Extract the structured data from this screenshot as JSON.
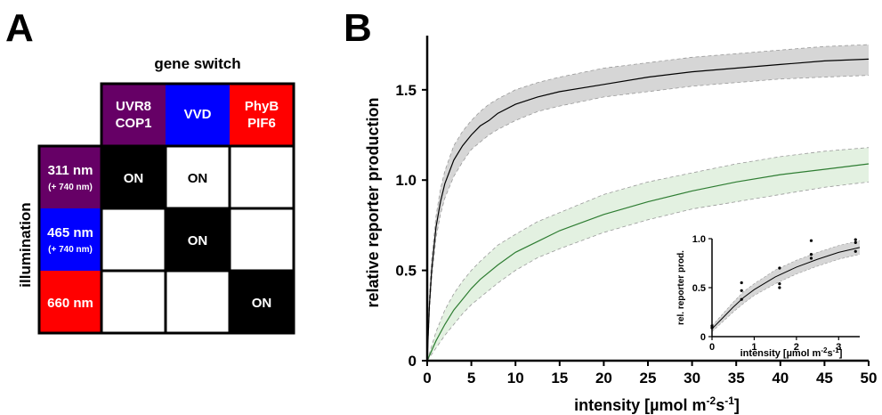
{
  "panel_a": {
    "letter": "A",
    "column_header": "gene switch",
    "row_header": "illumination",
    "switches": [
      {
        "line1": "UVR8",
        "line2": "COP1",
        "color": "#660066"
      },
      {
        "line1": "VVD",
        "line2": "",
        "color": "#0000ff"
      },
      {
        "line1": "PhyB",
        "line2": "PIF6",
        "color": "#ff0000"
      }
    ],
    "illuminations": [
      {
        "line1": "311 nm",
        "line2": "(+ 740 nm)",
        "color": "#660066"
      },
      {
        "line1": "465 nm",
        "line2": "(+ 740 nm)",
        "color": "#0000ff"
      },
      {
        "line1": "660 nm",
        "line2": "",
        "color": "#ff0000"
      }
    ],
    "matrix": [
      [
        "ON",
        "ON",
        ""
      ],
      [
        "",
        "ON",
        ""
      ],
      [
        "",
        "",
        "ON"
      ]
    ],
    "matrix_fill": [
      [
        "black",
        "white",
        "white"
      ],
      [
        "white",
        "black",
        "white"
      ],
      [
        "white",
        "white",
        "black"
      ]
    ]
  },
  "chart_data": [
    {
      "panel": "B",
      "type": "line",
      "title": "",
      "xlabel": "intensity [µmol m⁻² s⁻¹]",
      "ylabel": "relative reporter production",
      "xlim": [
        0,
        50
      ],
      "ylim": [
        0,
        1.8
      ],
      "xticks": [
        0,
        5,
        10,
        15,
        20,
        25,
        30,
        35,
        40,
        45,
        50
      ],
      "yticks": [
        0,
        0.5,
        1.0,
        1.5
      ],
      "ytick_labels": [
        "0",
        "0.5",
        "1.0",
        "1.5"
      ],
      "grid": false,
      "series": [
        {
          "color": "#000000",
          "band_color": "#d6d6d6",
          "x": [
            0,
            0.25,
            0.5,
            1,
            1.5,
            2,
            3,
            4,
            5,
            6,
            7,
            8,
            10,
            12.5,
            15,
            20,
            25,
            30,
            35,
            40,
            45,
            50
          ],
          "y": [
            0,
            0.31,
            0.5,
            0.74,
            0.88,
            0.98,
            1.11,
            1.19,
            1.25,
            1.3,
            1.33,
            1.37,
            1.42,
            1.46,
            1.49,
            1.53,
            1.57,
            1.6,
            1.62,
            1.64,
            1.66,
            1.67
          ],
          "lower": [
            0,
            0.27,
            0.45,
            0.68,
            0.81,
            0.9,
            1.02,
            1.1,
            1.17,
            1.21,
            1.25,
            1.28,
            1.33,
            1.38,
            1.41,
            1.46,
            1.49,
            1.52,
            1.54,
            1.56,
            1.57,
            1.58
          ],
          "upper": [
            0,
            0.36,
            0.56,
            0.8,
            0.95,
            1.05,
            1.19,
            1.27,
            1.33,
            1.38,
            1.42,
            1.45,
            1.5,
            1.54,
            1.57,
            1.62,
            1.65,
            1.68,
            1.7,
            1.72,
            1.74,
            1.75
          ]
        },
        {
          "color": "#2e7d32",
          "band_color": "#e3f1e1",
          "x": [
            0,
            1,
            2,
            3,
            4,
            5,
            6,
            8,
            10,
            12.5,
            15,
            20,
            25,
            30,
            35,
            40,
            45,
            50
          ],
          "y": [
            0,
            0.11,
            0.2,
            0.28,
            0.34,
            0.4,
            0.45,
            0.53,
            0.6,
            0.66,
            0.72,
            0.81,
            0.88,
            0.94,
            0.99,
            1.03,
            1.06,
            1.09
          ],
          "lower": [
            0,
            0.07,
            0.14,
            0.2,
            0.26,
            0.31,
            0.35,
            0.43,
            0.5,
            0.57,
            0.62,
            0.71,
            0.78,
            0.84,
            0.88,
            0.92,
            0.96,
            0.99
          ],
          "upper": [
            0,
            0.16,
            0.28,
            0.37,
            0.44,
            0.5,
            0.55,
            0.64,
            0.7,
            0.77,
            0.82,
            0.92,
            0.99,
            1.04,
            1.09,
            1.13,
            1.16,
            1.18
          ]
        }
      ]
    },
    {
      "panel": "B-inset",
      "type": "scatter",
      "xlabel": "intensity [µmol m⁻² s⁻¹]",
      "ylabel": "rel. reporter prod.",
      "xlim": [
        0,
        3.5
      ],
      "ylim": [
        0,
        1.0
      ],
      "xticks": [
        0,
        1,
        2,
        3
      ],
      "yticks": [
        0,
        0.5,
        1.0
      ],
      "ytick_labels": [
        "0",
        "0.5",
        "1.0"
      ],
      "points": [
        {
          "x": 0,
          "y": 0.09
        },
        {
          "x": 0,
          "y": 0.11
        },
        {
          "x": 0.7,
          "y": 0.38
        },
        {
          "x": 0.7,
          "y": 0.47
        },
        {
          "x": 0.7,
          "y": 0.55
        },
        {
          "x": 1.6,
          "y": 0.5
        },
        {
          "x": 1.6,
          "y": 0.54
        },
        {
          "x": 1.6,
          "y": 0.7
        },
        {
          "x": 2.35,
          "y": 0.8
        },
        {
          "x": 2.35,
          "y": 0.84
        },
        {
          "x": 2.35,
          "y": 0.98
        },
        {
          "x": 3.4,
          "y": 0.87
        },
        {
          "x": 3.4,
          "y": 0.96
        },
        {
          "x": 3.4,
          "y": 0.99
        }
      ],
      "fit": {
        "x": [
          0,
          0.25,
          0.5,
          0.75,
          1,
          1.5,
          2,
          2.5,
          3,
          3.5
        ],
        "y": [
          0.08,
          0.19,
          0.3,
          0.4,
          0.48,
          0.61,
          0.71,
          0.79,
          0.86,
          0.91
        ],
        "lower": [
          0.05,
          0.15,
          0.25,
          0.34,
          0.42,
          0.54,
          0.64,
          0.72,
          0.79,
          0.84
        ],
        "upper": [
          0.11,
          0.23,
          0.35,
          0.46,
          0.54,
          0.68,
          0.78,
          0.86,
          0.93,
          0.98
        ]
      }
    }
  ],
  "panel_b_letter": "B"
}
